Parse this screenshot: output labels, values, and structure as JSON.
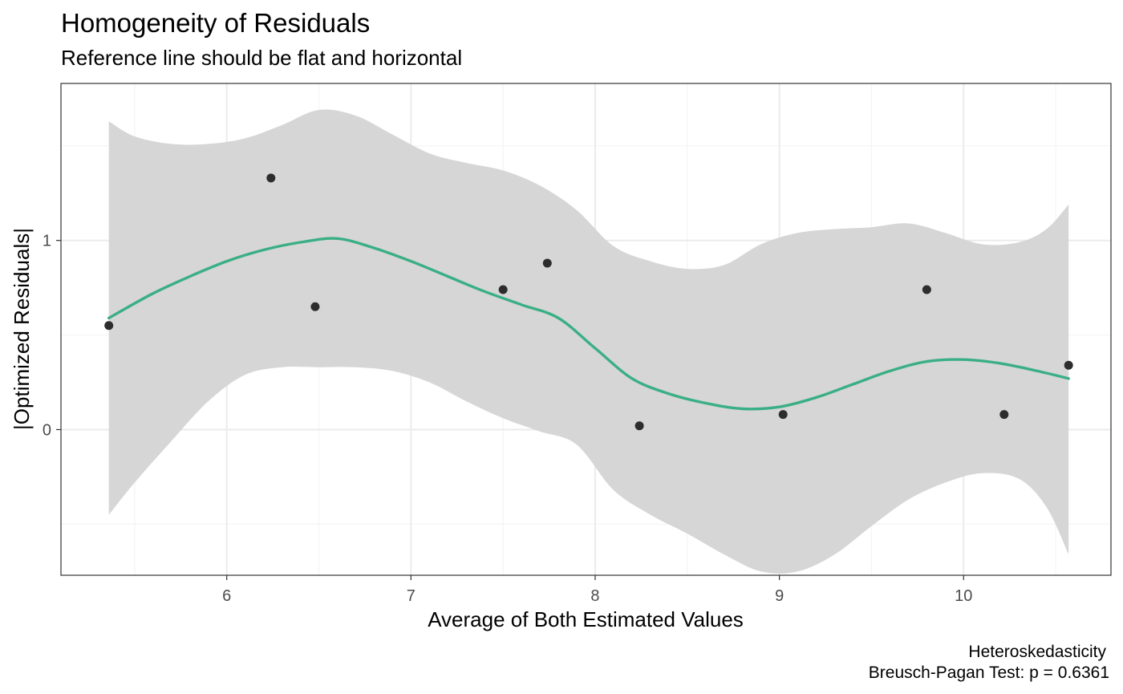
{
  "chart_data": {
    "type": "scatter",
    "title": "Homogeneity of Residuals",
    "subtitle": "Reference line should be flat and horizontal",
    "xlabel": "Average of Both Estimated Values",
    "ylabel": "|Optimized Residuals|",
    "xlim": [
      5.1,
      10.8
    ],
    "ylim": [
      -0.77,
      1.83
    ],
    "x_ticks": [
      6,
      7,
      8,
      9,
      10
    ],
    "x_tick_labels": [
      "6",
      "7",
      "8",
      "9",
      "10"
    ],
    "x_minor_ticks": [
      5.5,
      6.5,
      7.5,
      8.5,
      9.5,
      10.5
    ],
    "y_ticks": [
      0,
      1
    ],
    "y_tick_labels": [
      "0",
      "1"
    ],
    "y_minor_ticks": [
      -0.5,
      0.5,
      1.5
    ],
    "grid": true,
    "caption": [
      "Heteroskedasticity",
      "Breusch-Pagan Test: p = 0.6361"
    ],
    "points": [
      {
        "x": 5.36,
        "y": 0.55
      },
      {
        "x": 6.24,
        "y": 1.33
      },
      {
        "x": 6.48,
        "y": 0.65
      },
      {
        "x": 7.5,
        "y": 0.74
      },
      {
        "x": 7.74,
        "y": 0.88
      },
      {
        "x": 8.24,
        "y": 0.02
      },
      {
        "x": 9.02,
        "y": 0.08
      },
      {
        "x": 9.8,
        "y": 0.74
      },
      {
        "x": 10.22,
        "y": 0.08
      },
      {
        "x": 10.57,
        "y": 0.34
      }
    ],
    "smooth_line": [
      [
        5.36,
        0.59
      ],
      [
        5.6,
        0.72
      ],
      [
        5.8,
        0.81
      ],
      [
        6.0,
        0.89
      ],
      [
        6.2,
        0.95
      ],
      [
        6.4,
        0.99
      ],
      [
        6.6,
        1.01
      ],
      [
        6.8,
        0.96
      ],
      [
        7.0,
        0.89
      ],
      [
        7.2,
        0.81
      ],
      [
        7.4,
        0.73
      ],
      [
        7.6,
        0.66
      ],
      [
        7.8,
        0.59
      ],
      [
        8.0,
        0.43
      ],
      [
        8.2,
        0.27
      ],
      [
        8.4,
        0.19
      ],
      [
        8.6,
        0.14
      ],
      [
        8.8,
        0.11
      ],
      [
        9.0,
        0.12
      ],
      [
        9.2,
        0.17
      ],
      [
        9.4,
        0.24
      ],
      [
        9.6,
        0.31
      ],
      [
        9.8,
        0.36
      ],
      [
        10.0,
        0.37
      ],
      [
        10.2,
        0.35
      ],
      [
        10.4,
        0.31
      ],
      [
        10.57,
        0.27
      ]
    ],
    "ci_upper": [
      [
        5.36,
        1.63
      ],
      [
        5.5,
        1.55
      ],
      [
        5.7,
        1.51
      ],
      [
        5.9,
        1.51
      ],
      [
        6.1,
        1.54
      ],
      [
        6.3,
        1.61
      ],
      [
        6.5,
        1.69
      ],
      [
        6.7,
        1.66
      ],
      [
        6.9,
        1.56
      ],
      [
        7.1,
        1.46
      ],
      [
        7.3,
        1.41
      ],
      [
        7.5,
        1.37
      ],
      [
        7.7,
        1.29
      ],
      [
        7.9,
        1.16
      ],
      [
        8.1,
        0.97
      ],
      [
        8.3,
        0.89
      ],
      [
        8.5,
        0.85
      ],
      [
        8.7,
        0.87
      ],
      [
        8.9,
        0.98
      ],
      [
        9.1,
        1.04
      ],
      [
        9.3,
        1.06
      ],
      [
        9.5,
        1.07
      ],
      [
        9.7,
        1.09
      ],
      [
        9.9,
        1.04
      ],
      [
        10.1,
        0.98
      ],
      [
        10.3,
        0.99
      ],
      [
        10.45,
        1.06
      ],
      [
        10.57,
        1.19
      ]
    ],
    "ci_lower": [
      [
        5.36,
        -0.45
      ],
      [
        5.5,
        -0.28
      ],
      [
        5.7,
        -0.06
      ],
      [
        5.9,
        0.15
      ],
      [
        6.1,
        0.29
      ],
      [
        6.3,
        0.33
      ],
      [
        6.5,
        0.33
      ],
      [
        6.7,
        0.33
      ],
      [
        6.9,
        0.31
      ],
      [
        7.1,
        0.25
      ],
      [
        7.3,
        0.15
      ],
      [
        7.5,
        0.06
      ],
      [
        7.7,
        -0.01
      ],
      [
        7.9,
        -0.08
      ],
      [
        8.1,
        -0.32
      ],
      [
        8.3,
        -0.45
      ],
      [
        8.5,
        -0.55
      ],
      [
        8.7,
        -0.66
      ],
      [
        8.9,
        -0.75
      ],
      [
        9.1,
        -0.75
      ],
      [
        9.3,
        -0.66
      ],
      [
        9.5,
        -0.51
      ],
      [
        9.7,
        -0.37
      ],
      [
        9.9,
        -0.28
      ],
      [
        10.1,
        -0.23
      ],
      [
        10.3,
        -0.26
      ],
      [
        10.45,
        -0.41
      ],
      [
        10.57,
        -0.66
      ]
    ],
    "colors": {
      "line": "#3aaf85",
      "ribbon": "#d6d6d6",
      "point": "#2d2d2d",
      "grid_major": "#ebebeb",
      "grid_minor": "#f4f4f4",
      "panel_border": "#333333"
    }
  }
}
